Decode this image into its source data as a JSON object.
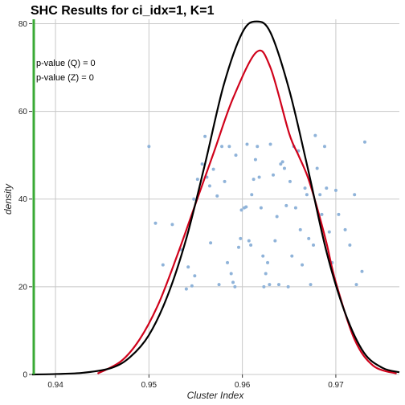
{
  "chart_data": {
    "type": "line",
    "title": "SHC Results for ci_idx=1, K=1",
    "xlabel": "Cluster Index",
    "ylabel": "density",
    "xlim": [
      0.9375,
      0.9768
    ],
    "ylim": [
      0,
      81
    ],
    "x_ticks": [
      0.94,
      0.95,
      0.96,
      0.97
    ],
    "x_tick_labels": [
      "0.94",
      "0.95",
      "0.96",
      "0.97"
    ],
    "y_ticks": [
      0,
      20,
      40,
      60,
      80
    ],
    "y_tick_labels": [
      "0",
      "20",
      "40",
      "60",
      "80"
    ],
    "grid": true,
    "annotations": [
      "p-value (Q) = 0",
      "p-value (Z) = 0"
    ],
    "colors": {
      "gaussian_fit": "#000000",
      "kde": "#d0021b",
      "points": "#8fb3d9",
      "observed_line": "#3aaa35",
      "grid": "#c8c8c8"
    },
    "observed_value": 0.9375,
    "series": [
      {
        "style": "black-curve",
        "x": [
          0.9375,
          0.94,
          0.943,
          0.946,
          0.948,
          0.95,
          0.952,
          0.954,
          0.956,
          0.958,
          0.96,
          0.9615,
          0.963,
          0.965,
          0.967,
          0.969,
          0.971,
          0.973,
          0.975,
          0.9768
        ],
        "y": [
          0,
          0.1,
          0.4,
          1.5,
          4,
          9,
          18,
          31,
          48,
          66,
          78,
          80.5,
          78,
          65,
          47,
          28,
          14,
          5,
          1.5,
          0.5
        ]
      },
      {
        "style": "red-curve",
        "x": [
          0.9445,
          0.947,
          0.949,
          0.951,
          0.953,
          0.955,
          0.957,
          0.959,
          0.9615,
          0.963,
          0.965,
          0.966,
          0.967,
          0.968,
          0.969,
          0.97,
          0.972,
          0.974,
          0.9765
        ],
        "y": [
          0.2,
          3,
          8,
          16,
          27,
          39,
          51,
          63,
          73.5,
          70,
          55,
          50,
          45,
          38,
          30,
          21,
          8,
          2,
          0.2
        ]
      }
    ],
    "jitter_points": [
      {
        "x": 0.95,
        "y": 52
      },
      {
        "x": 0.9507,
        "y": 34.5
      },
      {
        "x": 0.9515,
        "y": 25
      },
      {
        "x": 0.9525,
        "y": 34.2
      },
      {
        "x": 0.9534,
        "y": 28.5
      },
      {
        "x": 0.954,
        "y": 19.5
      },
      {
        "x": 0.9542,
        "y": 24.5
      },
      {
        "x": 0.9546,
        "y": 20.2
      },
      {
        "x": 0.9549,
        "y": 22.5
      },
      {
        "x": 0.9548,
        "y": 40
      },
      {
        "x": 0.9552,
        "y": 44.5
      },
      {
        "x": 0.9557,
        "y": 48
      },
      {
        "x": 0.956,
        "y": 54.3
      },
      {
        "x": 0.9562,
        "y": 45
      },
      {
        "x": 0.9565,
        "y": 43
      },
      {
        "x": 0.9569,
        "y": 46.8
      },
      {
        "x": 0.9566,
        "y": 30
      },
      {
        "x": 0.9573,
        "y": 40.7
      },
      {
        "x": 0.9575,
        "y": 20.5
      },
      {
        "x": 0.9578,
        "y": 52
      },
      {
        "x": 0.9581,
        "y": 44
      },
      {
        "x": 0.9586,
        "y": 52
      },
      {
        "x": 0.9584,
        "y": 25.5
      },
      {
        "x": 0.9588,
        "y": 23
      },
      {
        "x": 0.959,
        "y": 21
      },
      {
        "x": 0.9592,
        "y": 20
      },
      {
        "x": 0.9593,
        "y": 50
      },
      {
        "x": 0.9596,
        "y": 29
      },
      {
        "x": 0.9598,
        "y": 31
      },
      {
        "x": 0.9599,
        "y": 37.5
      },
      {
        "x": 0.9602,
        "y": 38
      },
      {
        "x": 0.9604,
        "y": 38.2
      },
      {
        "x": 0.9605,
        "y": 52.5
      },
      {
        "x": 0.9607,
        "y": 30.5
      },
      {
        "x": 0.9609,
        "y": 29.5
      },
      {
        "x": 0.961,
        "y": 41
      },
      {
        "x": 0.9612,
        "y": 44.5
      },
      {
        "x": 0.9614,
        "y": 49
      },
      {
        "x": 0.9616,
        "y": 52
      },
      {
        "x": 0.9618,
        "y": 45
      },
      {
        "x": 0.962,
        "y": 38
      },
      {
        "x": 0.9622,
        "y": 27
      },
      {
        "x": 0.9623,
        "y": 20
      },
      {
        "x": 0.9625,
        "y": 23
      },
      {
        "x": 0.9627,
        "y": 25.5
      },
      {
        "x": 0.9629,
        "y": 20.5
      },
      {
        "x": 0.963,
        "y": 52.5
      },
      {
        "x": 0.9633,
        "y": 45.5
      },
      {
        "x": 0.9635,
        "y": 30.5
      },
      {
        "x": 0.9637,
        "y": 36
      },
      {
        "x": 0.9639,
        "y": 20.5
      },
      {
        "x": 0.9641,
        "y": 48
      },
      {
        "x": 0.9643,
        "y": 48.5
      },
      {
        "x": 0.9645,
        "y": 47
      },
      {
        "x": 0.9647,
        "y": 38.5
      },
      {
        "x": 0.9649,
        "y": 20
      },
      {
        "x": 0.9651,
        "y": 44
      },
      {
        "x": 0.9653,
        "y": 27
      },
      {
        "x": 0.9655,
        "y": 52
      },
      {
        "x": 0.9657,
        "y": 38
      },
      {
        "x": 0.966,
        "y": 51
      },
      {
        "x": 0.9662,
        "y": 33
      },
      {
        "x": 0.9664,
        "y": 25
      },
      {
        "x": 0.9667,
        "y": 42.5
      },
      {
        "x": 0.9669,
        "y": 41
      },
      {
        "x": 0.9671,
        "y": 31
      },
      {
        "x": 0.9673,
        "y": 20.5
      },
      {
        "x": 0.9676,
        "y": 29.5
      },
      {
        "x": 0.9678,
        "y": 54.5
      },
      {
        "x": 0.968,
        "y": 47
      },
      {
        "x": 0.9683,
        "y": 41
      },
      {
        "x": 0.9685,
        "y": 36.5
      },
      {
        "x": 0.9688,
        "y": 52
      },
      {
        "x": 0.969,
        "y": 42.5
      },
      {
        "x": 0.9693,
        "y": 32.5
      },
      {
        "x": 0.9696,
        "y": 25.5
      },
      {
        "x": 0.97,
        "y": 42
      },
      {
        "x": 0.9703,
        "y": 36.5
      },
      {
        "x": 0.971,
        "y": 33
      },
      {
        "x": 0.9715,
        "y": 29.5
      },
      {
        "x": 0.972,
        "y": 41
      },
      {
        "x": 0.9722,
        "y": 20.5
      },
      {
        "x": 0.9728,
        "y": 23.5
      },
      {
        "x": 0.9731,
        "y": 53
      }
    ]
  }
}
